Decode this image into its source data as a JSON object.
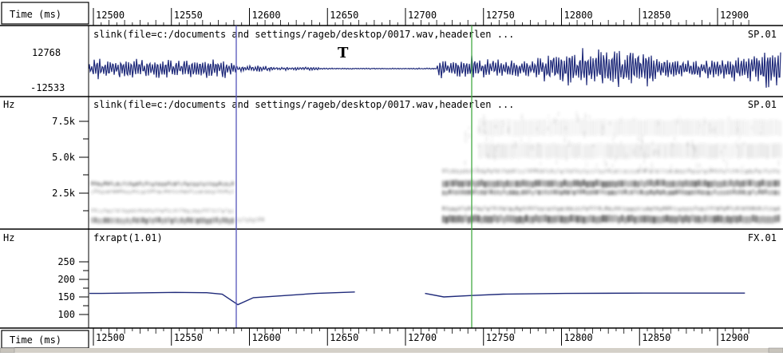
{
  "time_axis": {
    "label": "Time (ms)",
    "ticks": [
      "12500",
      "12550",
      "12600",
      "12650",
      "12700",
      "12750",
      "12800",
      "12850",
      "12900"
    ],
    "ticks_bottom": [
      "12500",
      "12550",
      "12600",
      "12650",
      "12700",
      "12750",
      "12800",
      "12850",
      "12900"
    ]
  },
  "waveform": {
    "title": "slink(file=c:/documents and settings/rageb/desktop/0017.wav,headerlen ...",
    "signal_id": "SP.01",
    "ymax_label": "12768",
    "ymin_label": "-12533",
    "annotation": "T"
  },
  "spectrogram": {
    "unit": "Hz",
    "title": "slink(file=c:/documents and settings/rageb/desktop/0017.wav,headerlen ...",
    "signal_id": "SP.01",
    "yticks": [
      "7.5k",
      "5.0k",
      "2.5k"
    ]
  },
  "pitch": {
    "unit": "Hz",
    "title": "fxrapt(1.01)",
    "signal_id": "FX.01",
    "yticks": [
      "250",
      "200",
      "150",
      "100"
    ]
  },
  "colors": {
    "trace": "#1f2a7a",
    "cursor_left": "#5555bb",
    "cursor_right": "#44aa44",
    "border": "#000000",
    "spectrum": "#333333"
  },
  "chart_data": [
    {
      "type": "line",
      "title": "fxrapt(1.01)",
      "xlabel": "Time (ms)",
      "ylabel": "Hz",
      "xlim": [
        12470,
        12920
      ],
      "ylim": [
        80,
        290
      ],
      "series": [
        {
          "name": "FX.01",
          "x": [
            12470,
            12500,
            12550,
            12570,
            12580,
            12590,
            12600,
            12640,
            12665
          ],
          "y": [
            160,
            160,
            163,
            162,
            158,
            128,
            148,
            160,
            164
          ]
        },
        {
          "name": "FX.01",
          "x": [
            12710,
            12722,
            12740,
            12760,
            12800,
            12850,
            12880,
            12915
          ],
          "y": [
            160,
            150,
            154,
            158,
            160,
            161,
            161,
            161
          ]
        }
      ]
    }
  ]
}
